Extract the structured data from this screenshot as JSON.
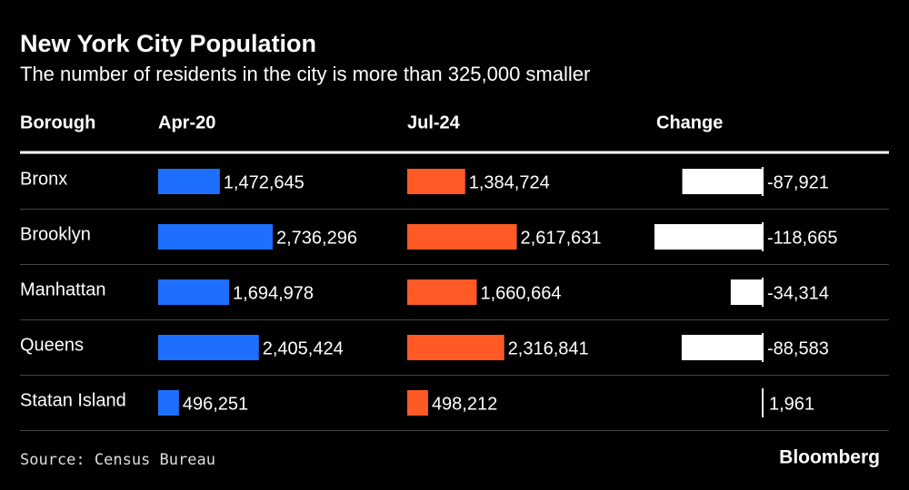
{
  "chart_data": {
    "type": "bar",
    "title": "New York City Population",
    "subtitle": "The number of residents in the city is more than 325,000 smaller",
    "category_header": "Borough",
    "categories": [
      "Bronx",
      "Brooklyn",
      "Manhattan",
      "Queens",
      "Statan Island"
    ],
    "series": [
      {
        "name": "Apr-20",
        "color": "#1f6fff",
        "values": [
          1472645,
          2736296,
          1694978,
          2405424,
          496251
        ],
        "value_labels": [
          "1,472,645",
          "2,736,296",
          "1,694,978",
          "2,405,424",
          "496,251"
        ]
      },
      {
        "name": "Jul-24",
        "color": "#ff5a26",
        "values": [
          1384724,
          2617631,
          1660664,
          2316841,
          498212
        ],
        "value_labels": [
          "1,384,724",
          "2,617,631",
          "1,660,664",
          "2,316,841",
          "498,212"
        ]
      },
      {
        "name": "Change",
        "color": "#ffffff",
        "values": [
          -87921,
          -118665,
          -34314,
          -88583,
          1961
        ],
        "value_labels": [
          "-87,921",
          "-118,665",
          "-34,314",
          "-88,583",
          "1,961"
        ]
      }
    ],
    "source": "Source: Census Bureau",
    "logo": "Bloomberg"
  }
}
